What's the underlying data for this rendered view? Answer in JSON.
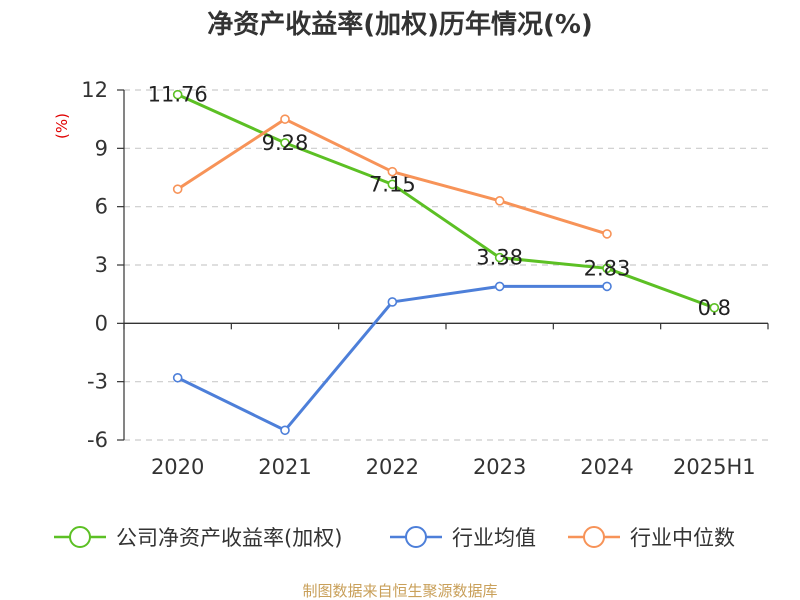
{
  "chart_data": {
    "type": "line",
    "title": "净资产收益率(加权)历年情况(%)",
    "ylabel": "(%)",
    "xlabel": "",
    "categories": [
      "2020",
      "2021",
      "2022",
      "2023",
      "2024",
      "2025H1"
    ],
    "ylim": [
      -6,
      12
    ],
    "yticks": [
      12,
      9,
      6,
      3,
      0,
      -3,
      -6
    ],
    "ytick_labels": [
      "12",
      "9",
      "6",
      "3",
      "0",
      "-3",
      "-6"
    ],
    "grid": "horizontal dashed",
    "legend_position": "bottom",
    "series": [
      {
        "name": "公司净资产收益率(加权)",
        "color": "#5cc024",
        "values": [
          11.76,
          9.28,
          7.15,
          3.38,
          2.83,
          0.8
        ],
        "labels": [
          "11.76",
          "9.28",
          "7.15",
          "3.38",
          "2.83",
          "0.8"
        ]
      },
      {
        "name": "行业均值",
        "color": "#4d7fd9",
        "values": [
          -2.8,
          -5.5,
          1.1,
          1.9,
          1.9,
          null
        ]
      },
      {
        "name": "行业中位数",
        "color": "#f79358",
        "values": [
          6.9,
          10.5,
          7.8,
          6.3,
          4.6,
          null
        ]
      }
    ]
  },
  "source": "制图数据来自恒生聚源数据库"
}
